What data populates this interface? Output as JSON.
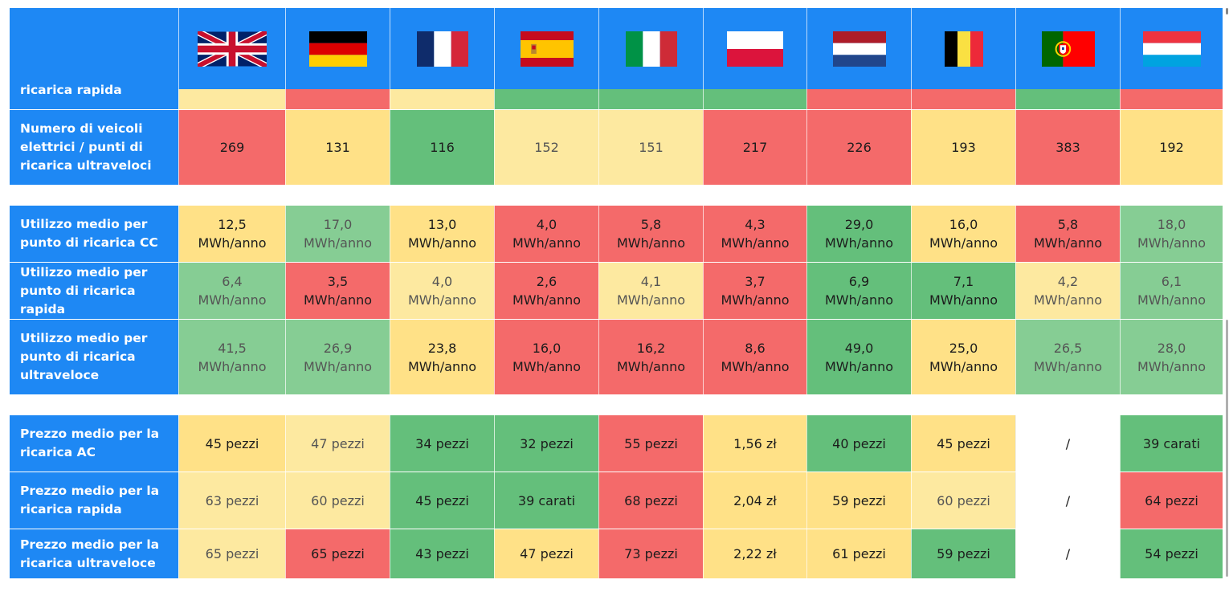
{
  "colors": {
    "header_blue": "#1e88f4",
    "red": "#f46a6a",
    "yellow": "#ffe187",
    "light_yellow": "#fde9a0",
    "green": "#64bf7b",
    "light_green": "#86cd94",
    "white": "#ffffff"
  },
  "countries": [
    {
      "name": "uk",
      "flag_icon": "uk-flag-icon"
    },
    {
      "name": "germany",
      "flag_icon": "germany-flag-icon"
    },
    {
      "name": "france",
      "flag_icon": "france-flag-icon"
    },
    {
      "name": "spain",
      "flag_icon": "spain-flag-icon"
    },
    {
      "name": "italy",
      "flag_icon": "italy-flag-icon"
    },
    {
      "name": "poland",
      "flag_icon": "poland-flag-icon"
    },
    {
      "name": "netherlands",
      "flag_icon": "netherlands-flag-icon"
    },
    {
      "name": "belgium",
      "flag_icon": "belgium-flag-icon"
    },
    {
      "name": "portugal",
      "flag_icon": "portugal-flag-icon"
    },
    {
      "name": "luxembourg",
      "flag_icon": "luxembourg-flag-icon"
    }
  ],
  "partial_row": {
    "label": "ricarica rapida",
    "colors": [
      "light_yellow",
      "red",
      "light_yellow",
      "green",
      "green",
      "green",
      "red",
      "red",
      "green",
      "red"
    ]
  },
  "sections": [
    {
      "rows": [
        {
          "label": "Numero di veicoli elettrici / punti di ricarica ultraveloci",
          "cells": [
            {
              "v": "269",
              "c": "red"
            },
            {
              "v": "131",
              "c": "yellow"
            },
            {
              "v": "116",
              "c": "green"
            },
            {
              "v": "152",
              "c": "light_yellow"
            },
            {
              "v": "151",
              "c": "light_yellow"
            },
            {
              "v": "217",
              "c": "red"
            },
            {
              "v": "226",
              "c": "red"
            },
            {
              "v": "193",
              "c": "yellow"
            },
            {
              "v": "383",
              "c": "red"
            },
            {
              "v": "192",
              "c": "yellow"
            }
          ]
        }
      ]
    },
    {
      "rows": [
        {
          "label": "Utilizzo medio per punto di ricarica CC",
          "cells": [
            {
              "v": "12,5 MWh/anno",
              "c": "yellow"
            },
            {
              "v": "17,0 MWh/anno",
              "c": "light_green"
            },
            {
              "v": "13,0 MWh/anno",
              "c": "yellow"
            },
            {
              "v": "4,0 MWh/anno",
              "c": "red"
            },
            {
              "v": "5,8 MWh/anno",
              "c": "red"
            },
            {
              "v": "4,3 MWh/anno",
              "c": "red"
            },
            {
              "v": "29,0 MWh/anno",
              "c": "green"
            },
            {
              "v": "16,0 MWh/anno",
              "c": "yellow"
            },
            {
              "v": "5,8 MWh/anno",
              "c": "red"
            },
            {
              "v": "18,0 MWh/anno",
              "c": "light_green"
            }
          ]
        },
        {
          "label": "Utilizzo medio per punto di ricarica rapida",
          "cells": [
            {
              "v": "6,4 MWh/anno",
              "c": "light_green"
            },
            {
              "v": "3,5 MWh/anno",
              "c": "red"
            },
            {
              "v": "4,0 MWh/anno",
              "c": "light_yellow"
            },
            {
              "v": "2,6 MWh/anno",
              "c": "red"
            },
            {
              "v": "4,1 MWh/anno",
              "c": "light_yellow"
            },
            {
              "v": "3,7 MWh/anno",
              "c": "red"
            },
            {
              "v": "6,9 MWh/anno",
              "c": "green"
            },
            {
              "v": "7,1 MWh/anno",
              "c": "green"
            },
            {
              "v": "4,2 MWh/anno",
              "c": "light_yellow"
            },
            {
              "v": "6,1 MWh/anno",
              "c": "light_green"
            }
          ]
        },
        {
          "label": "Utilizzo medio per punto di ricarica ultraveloce",
          "cells": [
            {
              "v": "41,5 MWh/anno",
              "c": "light_green"
            },
            {
              "v": "26,9 MWh/anno",
              "c": "light_green"
            },
            {
              "v": "23,8 MWh/anno",
              "c": "yellow"
            },
            {
              "v": "16,0 MWh/anno",
              "c": "red"
            },
            {
              "v": "16,2 MWh/anno",
              "c": "red"
            },
            {
              "v": "8,6 MWh/anno",
              "c": "red"
            },
            {
              "v": "49,0 MWh/anno",
              "c": "green"
            },
            {
              "v": "25,0 MWh/anno",
              "c": "yellow"
            },
            {
              "v": "26,5 MWh/anno",
              "c": "light_green"
            },
            {
              "v": "28,0 MWh/anno",
              "c": "light_green"
            }
          ]
        }
      ]
    },
    {
      "rows": [
        {
          "label": "Prezzo medio per la ricarica AC",
          "cells": [
            {
              "v": "45 pezzi",
              "c": "yellow"
            },
            {
              "v": "47 pezzi",
              "c": "light_yellow"
            },
            {
              "v": "34 pezzi",
              "c": "green"
            },
            {
              "v": "32 pezzi",
              "c": "green"
            },
            {
              "v": "55 pezzi",
              "c": "red"
            },
            {
              "v": "1,56 zł",
              "c": "yellow"
            },
            {
              "v": "40 pezzi",
              "c": "green"
            },
            {
              "v": "45 pezzi",
              "c": "yellow"
            },
            {
              "v": "/",
              "c": "white"
            },
            {
              "v": "39 carati",
              "c": "green"
            }
          ]
        },
        {
          "label": "Prezzo medio per la ricarica rapida",
          "cells": [
            {
              "v": "63 pezzi",
              "c": "light_yellow"
            },
            {
              "v": "60 pezzi",
              "c": "light_yellow"
            },
            {
              "v": "45 pezzi",
              "c": "green"
            },
            {
              "v": "39 carati",
              "c": "green"
            },
            {
              "v": "68 pezzi",
              "c": "red"
            },
            {
              "v": "2,04 zł",
              "c": "yellow"
            },
            {
              "v": "59 pezzi",
              "c": "yellow"
            },
            {
              "v": "60 pezzi",
              "c": "light_yellow"
            },
            {
              "v": "/",
              "c": "white"
            },
            {
              "v": "64 pezzi",
              "c": "red"
            }
          ]
        },
        {
          "label": "Prezzo medio per la ricarica ultraveloce",
          "cells": [
            {
              "v": "65 pezzi",
              "c": "light_yellow"
            },
            {
              "v": "65 pezzi",
              "c": "red"
            },
            {
              "v": "43 pezzi",
              "c": "green"
            },
            {
              "v": "47 pezzi",
              "c": "yellow"
            },
            {
              "v": "73 pezzi",
              "c": "red"
            },
            {
              "v": "2,22 zł",
              "c": "yellow"
            },
            {
              "v": "61 pezzi",
              "c": "yellow"
            },
            {
              "v": "59 pezzi",
              "c": "green"
            },
            {
              "v": "/",
              "c": "white"
            },
            {
              "v": "54 pezzi",
              "c": "green"
            }
          ]
        }
      ]
    }
  ]
}
